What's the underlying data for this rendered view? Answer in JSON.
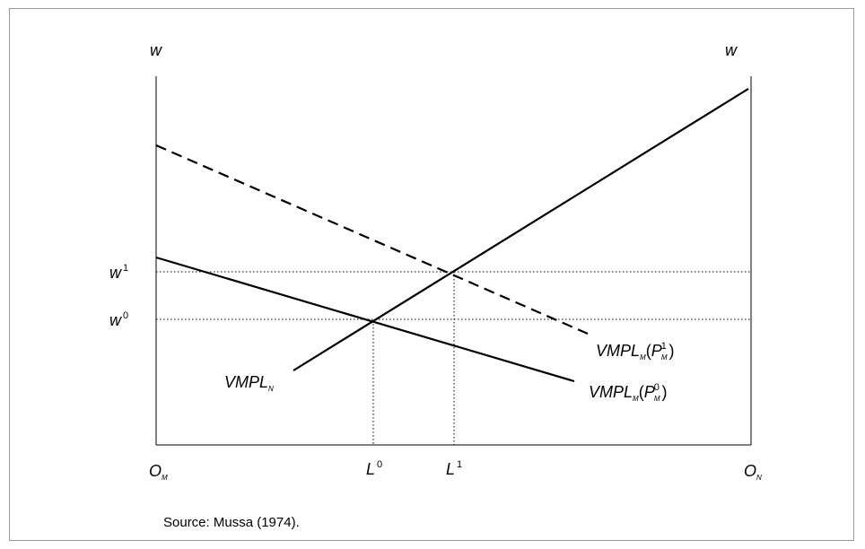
{
  "diagram": {
    "axis_top_left": "w",
    "axis_top_right": "w",
    "origin_left": {
      "main": "O",
      "sub": "M"
    },
    "origin_right": {
      "main": "O",
      "sub": "N"
    },
    "wage_labels": {
      "w1": {
        "main": "w",
        "sup": "1"
      },
      "w0": {
        "main": "w",
        "sup": "0"
      }
    },
    "labor_labels": {
      "L0": {
        "main": "L",
        "sup": "0"
      },
      "L1": {
        "main": "L",
        "sup": "1"
      }
    },
    "curves": {
      "vmpl_n": {
        "main": "VMPL",
        "sub": "N"
      },
      "vmpl_m1": {
        "main": "VMPL",
        "sub": "M",
        "open": "(",
        "p": "P",
        "p_sub": "M",
        "p_sup": "1",
        "close": ")"
      },
      "vmpl_m0": {
        "main": "VMPL",
        "sub": "M",
        "open": "(",
        "p": "P",
        "p_sub": "M",
        "p_sup": "0",
        "close": ")"
      }
    },
    "source": "Source: Mussa (1974)."
  }
}
